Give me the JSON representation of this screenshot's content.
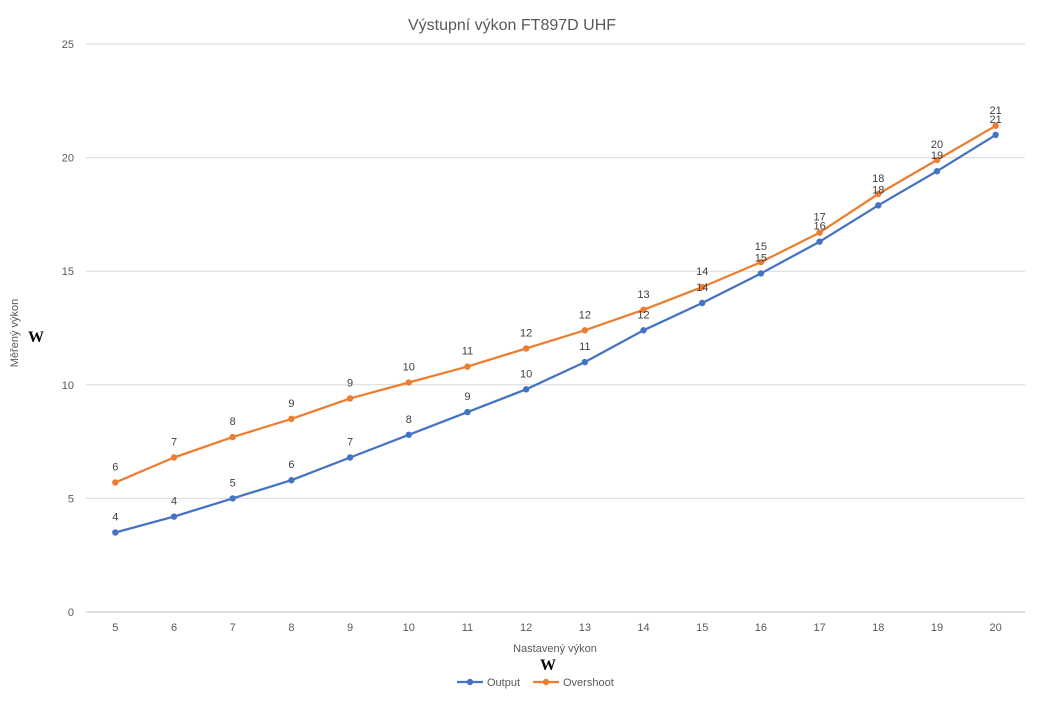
{
  "chart_data": {
    "type": "line",
    "title": "Výstupní výkon FT897D UHF",
    "xlabel": "Nastavený výkon",
    "ylabel": "Měřený výkon",
    "x_unit": "W",
    "y_unit": "W",
    "x": [
      5,
      6,
      7,
      8,
      9,
      10,
      11,
      12,
      13,
      14,
      15,
      16,
      17,
      18,
      19,
      20
    ],
    "ylim": [
      0,
      25
    ],
    "yticks": [
      0,
      5,
      10,
      15,
      20,
      25
    ],
    "grid": true,
    "legend_position": "bottom",
    "series": [
      {
        "name": "Output",
        "color": "#4472C4",
        "values": [
          3.5,
          4.2,
          5.0,
          5.8,
          6.8,
          7.8,
          8.8,
          9.8,
          11.0,
          12.4,
          13.6,
          14.9,
          16.3,
          17.9,
          19.4,
          21.0
        ],
        "labels": [
          "4",
          "4",
          "5",
          "6",
          "7",
          "8",
          "9",
          "10",
          "11",
          "12",
          "14",
          "15",
          "16",
          "18",
          "19",
          "21"
        ]
      },
      {
        "name": "Overshoot",
        "color": "#ED7D31",
        "values": [
          5.7,
          6.8,
          7.7,
          8.5,
          9.4,
          10.1,
          10.8,
          11.6,
          12.4,
          13.3,
          14.3,
          15.4,
          16.7,
          18.4,
          19.9,
          21.4
        ],
        "labels": [
          "6",
          "7",
          "8",
          "9",
          "9",
          "10",
          "11",
          "12",
          "12",
          "13",
          "14",
          "15",
          "17",
          "18",
          "20",
          "21"
        ]
      }
    ]
  }
}
